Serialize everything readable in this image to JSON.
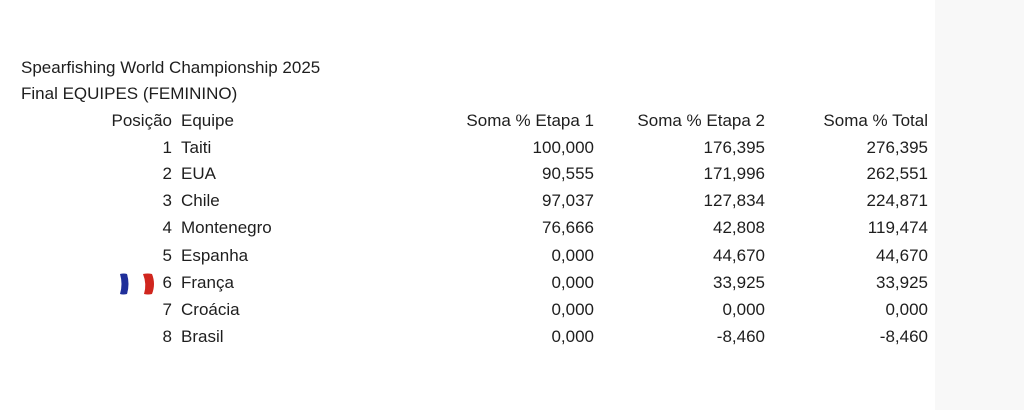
{
  "title": "Spearfishing World Championship 2025",
  "subtitle": "Final EQUIPES (FEMININO)",
  "headers": {
    "position": "Posição",
    "team": "Equipe",
    "stage1": "Soma % Etapa 1",
    "stage2": "Soma % Etapa 2",
    "total": "Soma % Total"
  },
  "rows": [
    {
      "position": "1",
      "team": "Taiti",
      "stage1": "100,000",
      "stage2": "176,395",
      "total": "276,395"
    },
    {
      "position": "2",
      "team": "EUA",
      "stage1": "90,555",
      "stage2": "171,996",
      "total": "262,551"
    },
    {
      "position": "3",
      "team": "Chile",
      "stage1": "97,037",
      "stage2": "127,834",
      "total": "224,871"
    },
    {
      "position": "4",
      "team": "Montenegro",
      "stage1": "76,666",
      "stage2": "42,808",
      "total": "119,474"
    },
    {
      "position": "5",
      "team": "Espanha",
      "stage1": "0,000",
      "stage2": "44,670",
      "total": "44,670"
    },
    {
      "position": "6",
      "team": "França",
      "stage1": "0,000",
      "stage2": "33,925",
      "total": "33,925",
      "icon": "france-flag-icon"
    },
    {
      "position": "7",
      "team": "Croácia",
      "stage1": "0,000",
      "stage2": "0,000",
      "total": "0,000"
    },
    {
      "position": "8",
      "team": "Brasil",
      "stage1": "0,000",
      "stage2": "-8,460",
      "total": "-8,460"
    }
  ],
  "colors": {
    "flag_blue": "#1f2f9a",
    "flag_red": "#d0261e",
    "side_panel": "#f8f8f8"
  }
}
